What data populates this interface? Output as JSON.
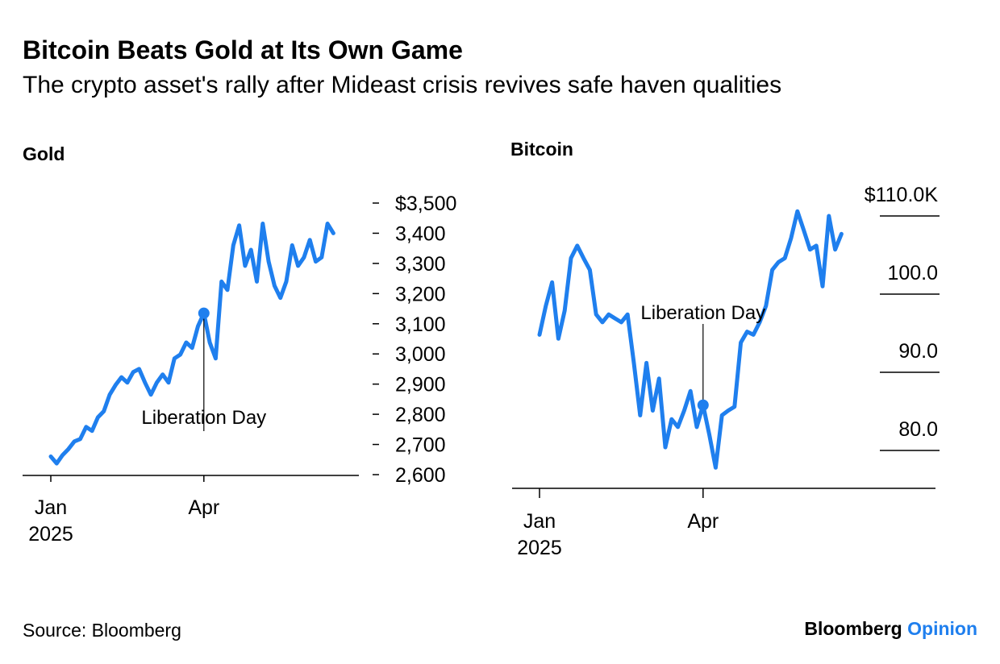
{
  "title": "Bitcoin Beats Gold at Its Own Game",
  "subtitle": "The crypto asset's rally after Mideast crisis revives safe haven qualities",
  "source": "Source: Bloomberg",
  "brand": {
    "name": "Bloomberg",
    "section": "Opinion"
  },
  "chart_data": [
    {
      "type": "line",
      "title": "Gold",
      "color": "#1f7fee",
      "annotation": "Liberation Day",
      "categories": [
        "Jan\n2025",
        null,
        null,
        null,
        null,
        null,
        null,
        null,
        null,
        null,
        null,
        null,
        null,
        null,
        null,
        null,
        null,
        null,
        null,
        null,
        null,
        null,
        null,
        null,
        null,
        null,
        "Apr",
        null,
        null,
        null,
        null,
        null,
        null,
        null,
        null,
        null,
        null,
        null,
        null,
        null,
        null,
        null,
        null,
        null,
        null,
        null,
        null,
        null,
        null
      ],
      "values": [
        2660,
        2637,
        2665,
        2685,
        2710,
        2718,
        2758,
        2745,
        2790,
        2810,
        2865,
        2897,
        2923,
        2905,
        2940,
        2950,
        2905,
        2865,
        2905,
        2932,
        2905,
        2985,
        2998,
        3038,
        3020,
        3092,
        3135,
        3038,
        2985,
        3240,
        3212,
        3360,
        3426,
        3292,
        3345,
        3240,
        3432,
        3306,
        3226,
        3186,
        3240,
        3360,
        3292,
        3320,
        3378,
        3306,
        3320,
        3432,
        3400
      ],
      "ylim": [
        2600,
        3500
      ],
      "yticks": [
        {
          "value": 3500,
          "label": "$3,500"
        },
        {
          "value": 3400,
          "label": "3,400"
        },
        {
          "value": 3300,
          "label": "3,300"
        },
        {
          "value": 3200,
          "label": "3,200"
        },
        {
          "value": 3100,
          "label": "3,100"
        },
        {
          "value": 3000,
          "label": "3,000"
        },
        {
          "value": 2900,
          "label": "2,900"
        },
        {
          "value": 2800,
          "label": "2,800"
        },
        {
          "value": 2700,
          "label": "2,700"
        },
        {
          "value": 2600,
          "label": "2,600"
        }
      ]
    },
    {
      "type": "line",
      "title": "Bitcoin",
      "color": "#1f7fee",
      "annotation": "Liberation Day",
      "categories": [
        "Jan\n2025",
        null,
        null,
        null,
        null,
        null,
        null,
        null,
        null,
        null,
        null,
        null,
        null,
        null,
        null,
        null,
        null,
        null,
        null,
        null,
        null,
        null,
        null,
        null,
        null,
        null,
        "Apr",
        null,
        null,
        null,
        null,
        null,
        null,
        null,
        null,
        null,
        null,
        null,
        null,
        null,
        null,
        null,
        null,
        null,
        null,
        null,
        null,
        null,
        null
      ],
      "values": [
        94.8,
        98.5,
        101.5,
        94.3,
        97.9,
        104.6,
        106.2,
        104.6,
        103.1,
        97.4,
        96.4,
        97.4,
        96.9,
        96.4,
        97.4,
        91.2,
        84.5,
        91.2,
        85.1,
        89.2,
        80.4,
        84.0,
        83.0,
        85.1,
        87.6,
        83.0,
        85.8,
        82.0,
        77.8,
        84.5,
        85.1,
        85.6,
        93.8,
        95.2,
        94.8,
        96.4,
        98.5,
        103.1,
        104.1,
        104.6,
        107.2,
        110.6,
        108.2,
        105.7,
        106.2,
        101.0,
        110.0,
        105.7,
        107.7
      ],
      "ylim": [
        75,
        112
      ],
      "yticks": [
        {
          "value": 110,
          "label": "$110.0K"
        },
        {
          "value": 100,
          "label": "100.0"
        },
        {
          "value": 90,
          "label": "90.0"
        },
        {
          "value": 80,
          "label": "80.0"
        }
      ]
    }
  ]
}
